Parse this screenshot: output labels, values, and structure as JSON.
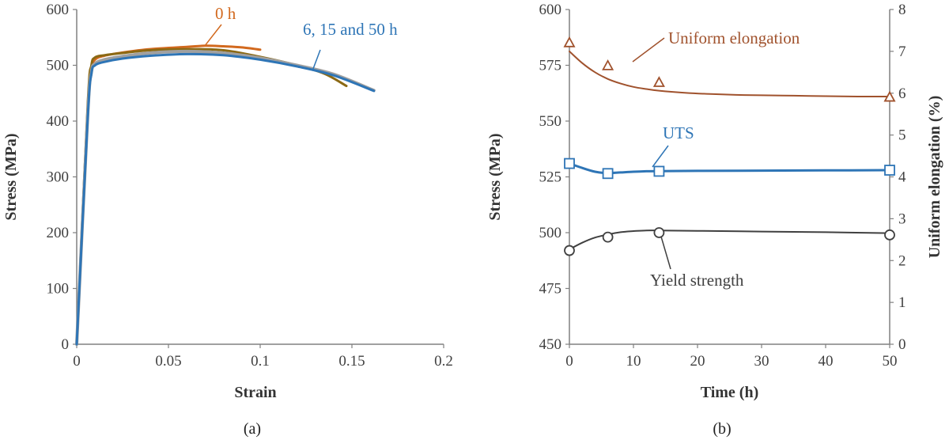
{
  "chart_data": [
    {
      "type": "line",
      "panel_label": "(a)",
      "xlabel": "Strain",
      "ylabel": "Stress (MPa)",
      "xlim": [
        0,
        0.2
      ],
      "ylim": [
        0,
        600
      ],
      "x_ticks": [
        0,
        0.05,
        0.1,
        0.15,
        0.2
      ],
      "x_tick_labels": [
        "0",
        "0.05",
        "0.1",
        "0.15",
        "0.2"
      ],
      "y_ticks": [
        0,
        100,
        200,
        300,
        400,
        500,
        600
      ],
      "y_tick_labels": [
        "0",
        "100",
        "200",
        "300",
        "400",
        "500",
        "600"
      ],
      "grid": false,
      "annotations": [
        {
          "text": "0 h",
          "color": "#D2691E"
        },
        {
          "text": "6, 15 and 50 h",
          "color": "#2E75B6"
        }
      ],
      "series": [
        {
          "color": "#D2691E",
          "x": [
            0,
            0.006,
            0.008,
            0.01,
            0.015,
            0.025,
            0.04,
            0.06,
            0.07,
            0.08,
            0.09,
            0.1
          ],
          "y": [
            0,
            420,
            492,
            510,
            517,
            523,
            529,
            533,
            535,
            534,
            532,
            528
          ]
        },
        {
          "color": "#8B6914",
          "x": [
            0,
            0.006,
            0.008,
            0.01,
            0.015,
            0.025,
            0.04,
            0.06,
            0.08,
            0.1,
            0.12,
            0.135,
            0.147
          ],
          "y": [
            0,
            430,
            500,
            514,
            518,
            522,
            527,
            529,
            527,
            515,
            500,
            485,
            463
          ]
        },
        {
          "color": "#A0A0A0",
          "x": [
            0,
            0.006,
            0.008,
            0.01,
            0.015,
            0.025,
            0.04,
            0.06,
            0.08,
            0.1,
            0.12,
            0.14,
            0.162
          ],
          "y": [
            0,
            410,
            488,
            503,
            510,
            516,
            522,
            525,
            522,
            513,
            500,
            484,
            455
          ]
        },
        {
          "color": "#2E75B6",
          "x": [
            0,
            0.006,
            0.008,
            0.01,
            0.015,
            0.025,
            0.04,
            0.06,
            0.08,
            0.1,
            0.12,
            0.14,
            0.162
          ],
          "y": [
            0,
            405,
            485,
            500,
            506,
            512,
            517,
            520,
            518,
            510,
            498,
            482,
            454
          ]
        }
      ]
    },
    {
      "type": "line",
      "panel_label": "(b)",
      "xlabel": "Time (h)",
      "ylabel": "Stress (MPa)",
      "y2label": "Uniform elongation (%)",
      "xlim": [
        0,
        50
      ],
      "ylim": [
        450,
        600
      ],
      "y2lim": [
        0,
        8
      ],
      "x_ticks": [
        0,
        10,
        20,
        30,
        40,
        50
      ],
      "x_tick_labels": [
        "0",
        "10",
        "20",
        "30",
        "40",
        "50"
      ],
      "y_ticks": [
        450,
        475,
        500,
        525,
        550,
        575,
        600
      ],
      "y_tick_labels": [
        "450",
        "475",
        "500",
        "525",
        "550",
        "575",
        "600"
      ],
      "y2_ticks": [
        0,
        1,
        2,
        3,
        4,
        5,
        6,
        7,
        8
      ],
      "y2_tick_labels": [
        "0",
        "1",
        "2",
        "3",
        "4",
        "5",
        "6",
        "7",
        "8"
      ],
      "grid": false,
      "series": [
        {
          "name": "Uniform elongation",
          "axis": "right",
          "marker": "triangle",
          "color": "#A0522D",
          "x": [
            0,
            6,
            14,
            50
          ],
          "y": [
            7.2,
            6.65,
            6.25,
            5.9
          ],
          "fit_x": [
            0,
            2,
            4,
            6,
            8,
            10,
            12,
            14,
            18,
            22,
            26,
            30,
            35,
            40,
            45,
            50
          ],
          "fit_y": [
            7.0,
            6.72,
            6.5,
            6.34,
            6.23,
            6.15,
            6.1,
            6.06,
            6.01,
            5.98,
            5.96,
            5.95,
            5.94,
            5.93,
            5.92,
            5.92
          ]
        },
        {
          "name": "UTS",
          "axis": "left",
          "marker": "square",
          "color": "#2E75B6",
          "x": [
            0,
            6,
            14,
            50
          ],
          "y": [
            531,
            526.5,
            527.5,
            528
          ],
          "fit_x": [
            0,
            2,
            4,
            6,
            8,
            10,
            12,
            14,
            20,
            30,
            40,
            50
          ],
          "fit_y": [
            531,
            529,
            527.3,
            526.7,
            527,
            527.3,
            527.5,
            527.6,
            527.7,
            527.8,
            527.9,
            528
          ]
        },
        {
          "name": "Yield strength",
          "axis": "left",
          "marker": "circle",
          "color": "#404040",
          "x": [
            0,
            6,
            14,
            50
          ],
          "y": [
            492,
            498,
            500,
            499
          ],
          "fit_x": [
            0,
            2,
            4,
            6,
            8,
            10,
            12,
            14,
            20,
            30,
            40,
            50
          ],
          "fit_y": [
            492.5,
            495.5,
            497.8,
            499.2,
            500.2,
            500.7,
            501,
            501,
            500.8,
            500.5,
            500.2,
            499.8
          ]
        }
      ]
    }
  ]
}
